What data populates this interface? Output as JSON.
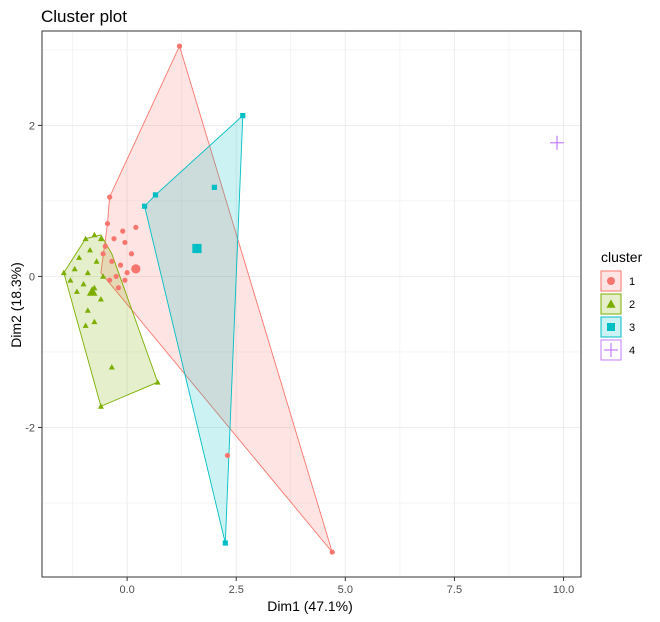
{
  "chart_data": {
    "type": "scatter",
    "title": "Cluster plot",
    "xlabel": "Dim1 (47.1%)",
    "ylabel": "Dim2 (18.3%)",
    "xlim": [
      -1.95,
      10.4
    ],
    "ylim": [
      -3.98,
      3.25
    ],
    "x_ticks": [
      0,
      2.5,
      5,
      7.5,
      10
    ],
    "x_tick_labels": [
      "0.0",
      "2.5",
      "5.0",
      "7.5",
      "10.0"
    ],
    "y_ticks": [
      -2,
      0,
      2
    ],
    "y_tick_labels": [
      "-2",
      "0",
      "2"
    ],
    "grid": true,
    "legend": {
      "title": "cluster",
      "position": "right"
    },
    "series": [
      {
        "name": "1",
        "color": "#F8766D",
        "shape": "circle",
        "points": [
          [
            1.2,
            3.05
          ],
          [
            -0.4,
            1.05
          ],
          [
            -0.45,
            0.7
          ],
          [
            -0.1,
            0.6
          ],
          [
            0.2,
            0.65
          ],
          [
            -0.3,
            0.5
          ],
          [
            -0.05,
            0.45
          ],
          [
            -0.5,
            0.4
          ],
          [
            0.1,
            0.3
          ],
          [
            -0.55,
            0.3
          ],
          [
            -0.35,
            0.2
          ],
          [
            -0.15,
            0.15
          ],
          [
            0.0,
            0.05
          ],
          [
            -0.25,
            0.0
          ],
          [
            -0.05,
            -0.05
          ],
          [
            -0.4,
            -0.05
          ],
          [
            -0.2,
            -0.15
          ],
          [
            2.3,
            -2.37
          ],
          [
            4.7,
            -3.65
          ]
        ],
        "hull": [
          [
            1.2,
            3.05
          ],
          [
            4.7,
            -3.65
          ],
          [
            -0.6,
            0.05
          ],
          [
            -0.45,
            0.7
          ],
          [
            -0.4,
            1.05
          ]
        ],
        "centroid": [
          0.2,
          0.1
        ]
      },
      {
        "name": "2",
        "color": "#7CAE00",
        "shape": "triangle",
        "points": [
          [
            -1.45,
            0.05
          ],
          [
            -0.95,
            0.5
          ],
          [
            -0.75,
            0.55
          ],
          [
            -0.6,
            0.5
          ],
          [
            -0.85,
            0.35
          ],
          [
            -1.1,
            0.25
          ],
          [
            -0.7,
            0.2
          ],
          [
            -1.2,
            0.1
          ],
          [
            -0.9,
            0.05
          ],
          [
            -0.55,
            0.0
          ],
          [
            -1.3,
            -0.05
          ],
          [
            -1.0,
            -0.1
          ],
          [
            -0.75,
            -0.15
          ],
          [
            -1.15,
            -0.2
          ],
          [
            -0.6,
            -0.3
          ],
          [
            -0.9,
            -0.45
          ],
          [
            -0.75,
            -0.6
          ],
          [
            -0.95,
            -0.65
          ],
          [
            -0.35,
            -1.2
          ],
          [
            0.7,
            -1.4
          ],
          [
            -0.6,
            -1.72
          ]
        ],
        "hull": [
          [
            -1.45,
            0.05
          ],
          [
            -0.95,
            0.5
          ],
          [
            -0.6,
            0.55
          ],
          [
            -0.35,
            0.3
          ],
          [
            0.7,
            -1.4
          ],
          [
            -0.6,
            -1.72
          ]
        ],
        "centroid": [
          -0.8,
          -0.2
        ]
      },
      {
        "name": "3",
        "color": "#00BFC4",
        "shape": "square",
        "points": [
          [
            2.65,
            2.13
          ],
          [
            0.65,
            1.08
          ],
          [
            0.4,
            0.93
          ],
          [
            2.0,
            1.18
          ],
          [
            2.25,
            -3.53
          ]
        ],
        "hull": [
          [
            2.65,
            2.13
          ],
          [
            2.25,
            -3.53
          ],
          [
            0.4,
            0.93
          ],
          [
            0.65,
            1.08
          ]
        ],
        "centroid": [
          1.6,
          0.37
        ]
      },
      {
        "name": "4",
        "color": "#C77CFF",
        "shape": "cross",
        "points": [
          [
            9.85,
            1.77
          ]
        ],
        "hull": [],
        "centroid": [
          9.85,
          1.77
        ]
      }
    ]
  }
}
